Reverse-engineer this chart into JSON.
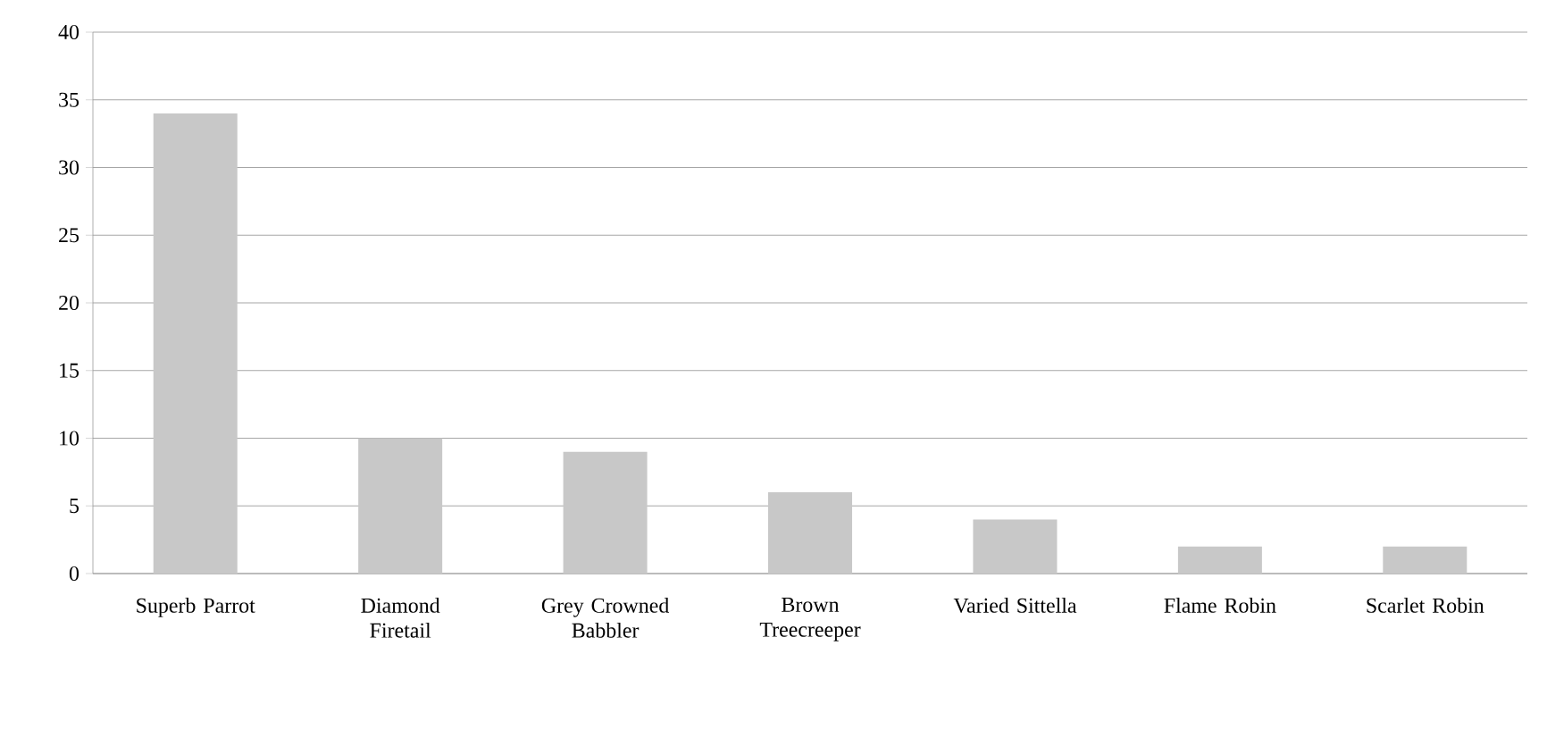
{
  "chart_data": {
    "type": "bar",
    "categories": [
      "Superb Parrot",
      "Diamond Firetail",
      "Grey Crowned Babbler",
      "Brown Treecreeper",
      "Varied Sittella",
      "Flame Robin",
      "Scarlet Robin"
    ],
    "values": [
      34,
      10,
      9,
      6,
      4,
      2,
      2
    ],
    "color": "#c8c8c8",
    "ylim": [
      0,
      40
    ],
    "yticks": [
      0,
      5,
      10,
      15,
      20,
      25,
      30,
      35,
      40
    ],
    "grid": "y"
  }
}
